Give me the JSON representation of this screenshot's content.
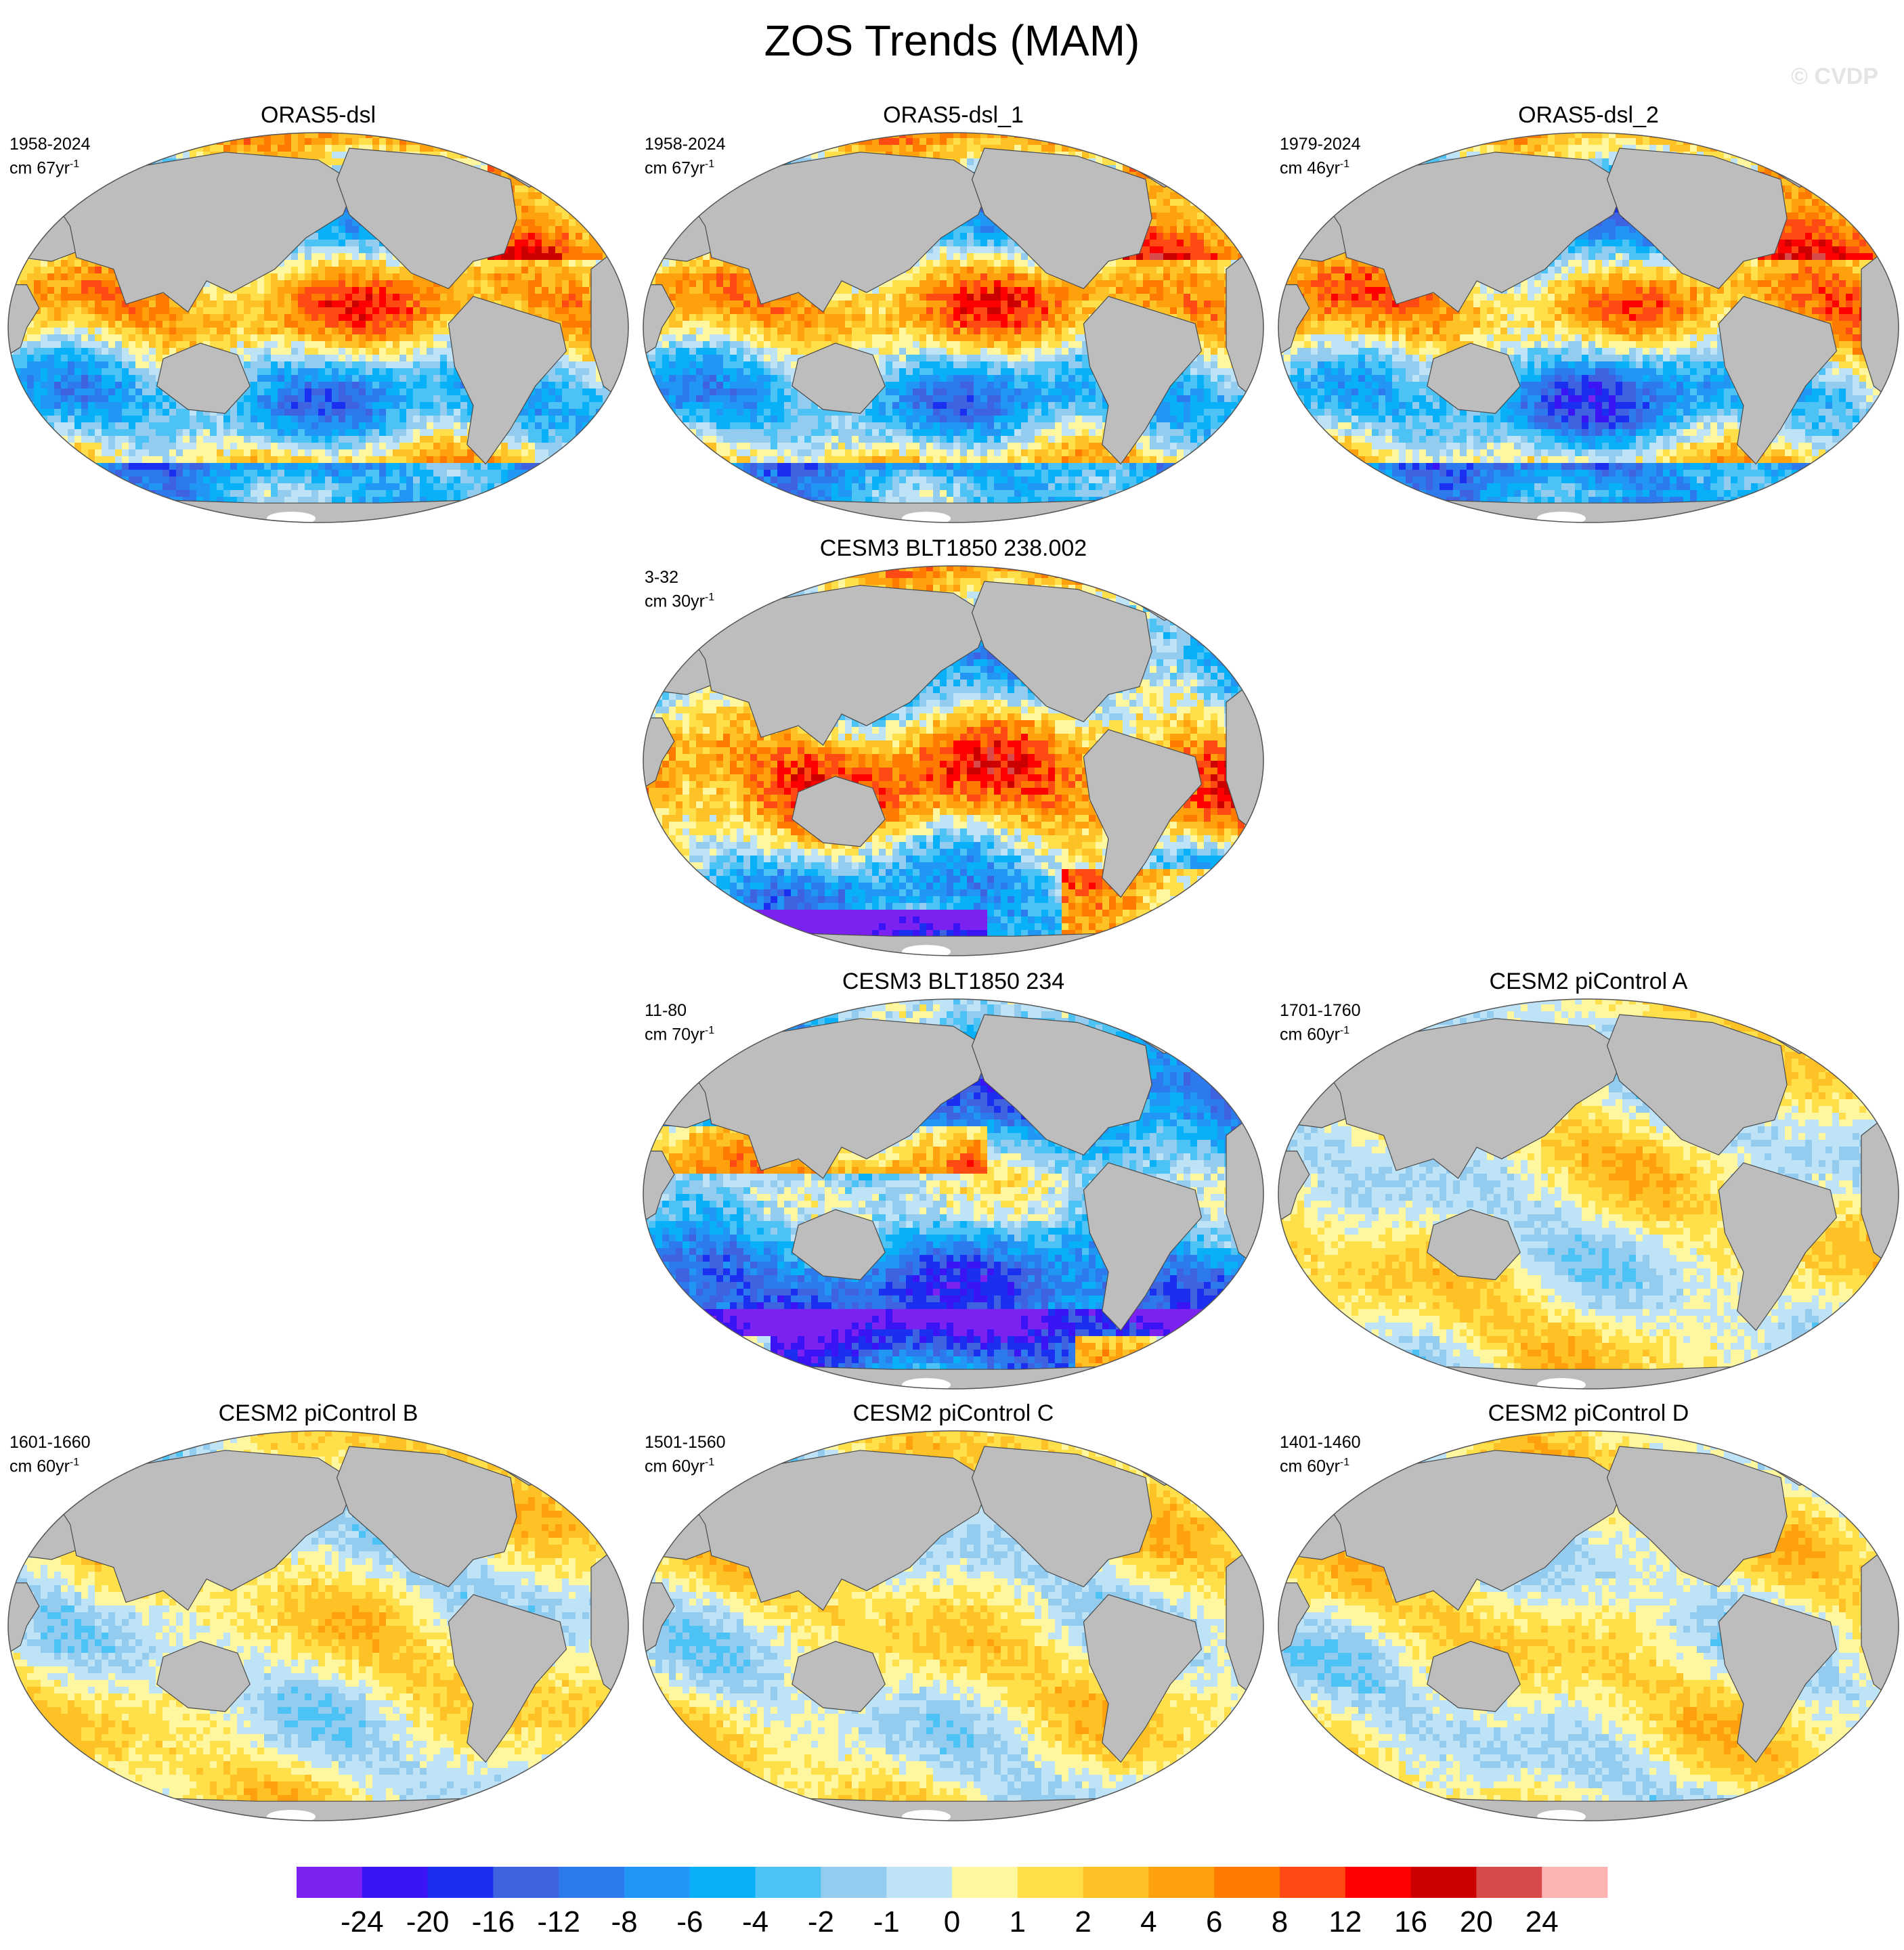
{
  "title": "ZOS Trends (MAM)",
  "watermark": "© CVDP",
  "colors": {
    "land": "#bdbdbd",
    "ice": "#ffffff",
    "coast": "#4a4a4a"
  },
  "palette": [
    "#7b22f0",
    "#3a14f5",
    "#1a2ff0",
    "#3e62e0",
    "#2d7aef",
    "#2196f5",
    "#08b0f8",
    "#4cc2f5",
    "#94ccef",
    "#bee3f7",
    "#fff7a0",
    "#ffe04a",
    "#ffc226",
    "#ffa00d",
    "#ff7a00",
    "#ff4a14",
    "#ff0000",
    "#cc0000",
    "#d94a4a",
    "#ffb4b4"
  ],
  "legend": {
    "tick_labels": [
      "-24",
      "-20",
      "-16",
      "-12",
      "-8",
      "-6",
      "-4",
      "-2",
      "-1",
      "0",
      "1",
      "2",
      "4",
      "6",
      "8",
      "12",
      "16",
      "20",
      "24"
    ]
  },
  "panels": [
    {
      "title": "ORAS5-dsl",
      "period": "1958-2024",
      "units": "cm 67yr",
      "unit_exp": "-1",
      "style": "strong"
    },
    {
      "title": "ORAS5-dsl_1",
      "period": "1958-2024",
      "units": "cm 67yr",
      "unit_exp": "-1",
      "style": "strong"
    },
    {
      "title": "ORAS5-dsl_2",
      "period": "1979-2024",
      "units": "cm 46yr",
      "unit_exp": "-1",
      "style": "strong2"
    },
    {
      "title": "CESM3 BLT1850 238.002",
      "period": "3-32",
      "units": "cm 30yr",
      "unit_exp": "-1",
      "style": "model1"
    },
    {
      "title": "CESM3 BLT1850 234",
      "period": "11-80",
      "units": "cm 70yr",
      "unit_exp": "-1",
      "style": "model2"
    },
    {
      "title": "CESM2 piControl A",
      "period": "1701-1760",
      "units": "cm 60yr",
      "unit_exp": "-1",
      "style": "weak"
    },
    {
      "title": "CESM2 piControl B",
      "period": "1601-1660",
      "units": "cm 60yr",
      "unit_exp": "-1",
      "style": "weak2"
    },
    {
      "title": "CESM2 piControl C",
      "period": "1501-1560",
      "units": "cm 60yr",
      "unit_exp": "-1",
      "style": "weak3"
    },
    {
      "title": "CESM2 piControl D",
      "period": "1401-1460",
      "units": "cm 60yr",
      "unit_exp": "-1",
      "style": "weak4"
    }
  ]
}
